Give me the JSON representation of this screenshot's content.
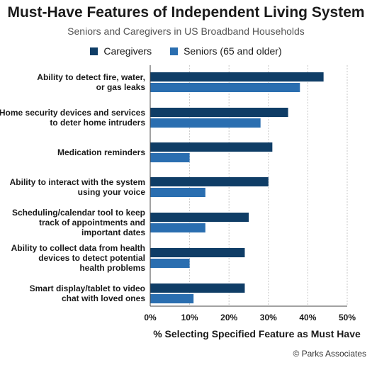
{
  "chart_data": {
    "type": "bar",
    "orientation": "horizontal",
    "title": "Must-Have Features of Independent Living System",
    "subtitle": "Seniors and Caregivers in US Broadband Households",
    "categories": [
      [
        "Ability to detect fire, water,",
        "or gas leaks"
      ],
      [
        "Home security devices and services",
        "to deter home intruders"
      ],
      [
        "Medication reminders"
      ],
      [
        "Ability to interact with the system",
        "using your voice"
      ],
      [
        "Scheduling/calendar tool to keep",
        "track of appointments and",
        "important dates"
      ],
      [
        "Ability to collect data from health",
        "devices to detect potential",
        "health problems"
      ],
      [
        "Smart display/tablet to video",
        "chat with loved ones"
      ]
    ],
    "series": [
      {
        "name": "Caregivers",
        "color": "#0f3d66",
        "values": [
          44,
          35,
          31,
          30,
          25,
          24,
          24
        ]
      },
      {
        "name": "Seniors (65 and older)",
        "color": "#2a6eb0",
        "values": [
          38,
          28,
          10,
          14,
          14,
          10,
          11
        ]
      }
    ],
    "xlim": [
      0,
      50
    ],
    "xticks": [
      "0%",
      "10%",
      "20%",
      "30%",
      "40%",
      "50%"
    ],
    "xlabel": "% Selecting Specified Feature as Must Have",
    "ylabel": "",
    "grid": true,
    "legend_position": "top"
  },
  "footer": {
    "source": "© Parks Associates"
  }
}
